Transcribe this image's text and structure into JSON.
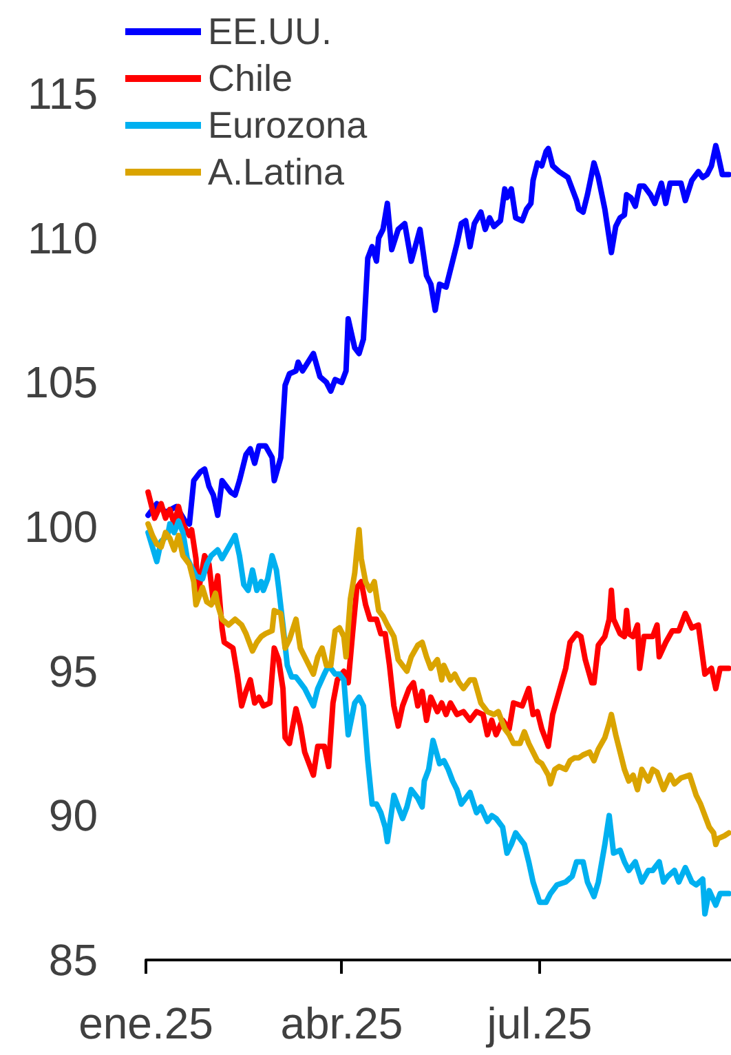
{
  "chart_data": {
    "type": "line",
    "legend": "top left",
    "xlim": [
      "2025-01-01",
      "2025-09-27"
    ],
    "xticks": [
      {
        "value": "2025-01-01",
        "label": "ene.25"
      },
      {
        "value": "2025-04-01",
        "label": "abr.25"
      },
      {
        "value": "2025-07-01",
        "label": "jul.25"
      }
    ],
    "ylim": [
      85,
      115
    ],
    "yticks": [
      85,
      90,
      95,
      100,
      105,
      110,
      115
    ],
    "series": [
      {
        "name": "EE.UU.",
        "color": "#0000ff",
        "x": [
          "2025-01-02",
          "2025-01-06",
          "2025-01-10",
          "2025-01-15",
          "2025-01-19",
          "2025-01-21",
          "2025-01-23",
          "2025-01-26",
          "2025-01-28",
          "2025-01-30",
          "2025-02-01",
          "2025-02-03",
          "2025-02-05",
          "2025-02-09",
          "2025-02-11",
          "2025-02-13",
          "2025-02-16",
          "2025-02-18",
          "2025-02-20",
          "2025-02-22",
          "2025-02-25",
          "2025-02-28",
          "2025-03-01",
          "2025-03-04",
          "2025-03-06",
          "2025-03-08",
          "2025-03-11",
          "2025-03-12",
          "2025-03-14",
          "2025-03-19",
          "2025-03-22",
          "2025-03-25",
          "2025-03-27",
          "2025-03-29",
          "2025-04-01",
          "2025-04-03",
          "2025-04-04",
          "2025-04-07",
          "2025-04-09",
          "2025-04-11",
          "2025-04-13",
          "2025-04-15",
          "2025-04-17",
          "2025-04-18",
          "2025-04-20",
          "2025-04-22",
          "2025-04-24",
          "2025-04-27",
          "2025-04-30",
          "2025-05-03",
          "2025-05-07",
          "2025-05-10",
          "2025-05-12",
          "2025-05-14",
          "2025-05-16",
          "2025-05-19",
          "2025-05-22",
          "2025-05-24",
          "2025-05-26",
          "2025-05-28",
          "2025-05-30",
          "2025-06-01",
          "2025-06-04",
          "2025-06-06",
          "2025-06-08",
          "2025-06-10",
          "2025-06-13",
          "2025-06-15",
          "2025-06-16",
          "2025-06-18",
          "2025-06-20",
          "2025-06-23",
          "2025-06-25",
          "2025-06-27",
          "2025-06-28",
          "2025-06-30",
          "2025-07-02",
          "2025-07-04",
          "2025-07-05",
          "2025-07-07",
          "2025-07-10",
          "2025-07-14",
          "2025-07-16",
          "2025-07-18",
          "2025-07-19",
          "2025-07-21",
          "2025-07-23",
          "2025-07-26",
          "2025-07-28",
          "2025-07-31",
          "2025-08-03",
          "2025-08-05",
          "2025-08-07",
          "2025-08-09",
          "2025-08-10",
          "2025-08-12",
          "2025-08-14",
          "2025-08-16",
          "2025-08-18",
          "2025-08-21",
          "2025-08-23",
          "2025-08-26",
          "2025-08-28",
          "2025-08-30",
          "2025-09-01",
          "2025-09-04",
          "2025-09-06",
          "2025-09-09",
          "2025-09-12",
          "2025-09-14",
          "2025-09-16",
          "2025-09-18",
          "2025-09-20",
          "2025-09-21",
          "2025-09-23",
          "2025-09-26"
        ],
        "values": [
          100.4,
          100.8,
          100.5,
          100.7,
          100.2,
          100.1,
          101.6,
          101.9,
          102.0,
          101.4,
          101.1,
          100.4,
          101.6,
          101.2,
          101.1,
          101.6,
          102.5,
          102.7,
          102.2,
          102.8,
          102.8,
          102.4,
          101.6,
          102.4,
          104.9,
          105.3,
          105.4,
          105.7,
          105.4,
          106.0,
          105.2,
          105.0,
          104.7,
          105.1,
          105.0,
          105.4,
          107.2,
          106.2,
          106.0,
          106.5,
          109.3,
          109.7,
          109.2,
          110.0,
          110.3,
          111.2,
          109.6,
          110.3,
          110.5,
          109.2,
          110.3,
          108.7,
          108.4,
          107.5,
          108.4,
          108.3,
          109.2,
          109.8,
          110.5,
          110.6,
          109.7,
          110.5,
          110.9,
          110.3,
          110.7,
          110.4,
          110.6,
          111.7,
          111.4,
          111.7,
          110.7,
          110.6,
          111.0,
          111.2,
          112.0,
          112.6,
          112.5,
          113.0,
          113.1,
          112.5,
          112.3,
          112.1,
          111.7,
          111.3,
          111.0,
          110.9,
          111.5,
          112.6,
          112.1,
          111.0,
          109.5,
          110.4,
          110.7,
          110.8,
          111.5,
          111.4,
          111.1,
          111.8,
          111.8,
          111.5,
          111.2,
          111.9,
          111.2,
          111.9,
          111.9,
          111.9,
          111.3,
          112.0,
          112.3,
          112.1,
          112.2,
          112.5,
          113.2,
          112.9,
          112.2,
          112.2
        ]
      },
      {
        "name": "Chile",
        "color": "#ff0000",
        "x": [
          "2025-01-02",
          "2025-01-05",
          "2025-01-08",
          "2025-01-10",
          "2025-01-12",
          "2025-01-14",
          "2025-01-16",
          "2025-01-18",
          "2025-01-21",
          "2025-01-22",
          "2025-01-24",
          "2025-01-25",
          "2025-01-28",
          "2025-01-30",
          "2025-02-01",
          "2025-02-03",
          "2025-02-05",
          "2025-02-06",
          "2025-02-10",
          "2025-02-12",
          "2025-02-14",
          "2025-02-16",
          "2025-02-18",
          "2025-02-20",
          "2025-02-22",
          "2025-02-24",
          "2025-02-27",
          "2025-03-01",
          "2025-03-03",
          "2025-03-05",
          "2025-03-06",
          "2025-03-08",
          "2025-03-11",
          "2025-03-13",
          "2025-03-15",
          "2025-03-19",
          "2025-03-21",
          "2025-03-24",
          "2025-03-26",
          "2025-03-28",
          "2025-03-30",
          "2025-04-02",
          "2025-04-04",
          "2025-04-06",
          "2025-04-08",
          "2025-04-10",
          "2025-04-12",
          "2025-04-14",
          "2025-04-17",
          "2025-04-19",
          "2025-04-21",
          "2025-04-23",
          "2025-04-25",
          "2025-04-27",
          "2025-04-29",
          "2025-05-02",
          "2025-05-04",
          "2025-05-06",
          "2025-05-08",
          "2025-05-10",
          "2025-05-12",
          "2025-05-15",
          "2025-05-17",
          "2025-05-19",
          "2025-05-21",
          "2025-05-24",
          "2025-05-27",
          "2025-05-30",
          "2025-06-02",
          "2025-06-05",
          "2025-06-07",
          "2025-06-09",
          "2025-06-11",
          "2025-06-14",
          "2025-06-17",
          "2025-06-19",
          "2025-06-23",
          "2025-06-26",
          "2025-06-28",
          "2025-06-30",
          "2025-07-02",
          "2025-07-05",
          "2025-07-07",
          "2025-07-10",
          "2025-07-13",
          "2025-07-15",
          "2025-07-18",
          "2025-07-20",
          "2025-07-22",
          "2025-07-25",
          "2025-07-26",
          "2025-07-28",
          "2025-07-31",
          "2025-08-02",
          "2025-08-03",
          "2025-08-04",
          "2025-08-07",
          "2025-08-09",
          "2025-08-10",
          "2025-08-11",
          "2025-08-13",
          "2025-08-15",
          "2025-08-16",
          "2025-08-18",
          "2025-08-22",
          "2025-08-24",
          "2025-08-25",
          "2025-08-28",
          "2025-08-31",
          "2025-09-03",
          "2025-09-06",
          "2025-09-09",
          "2025-09-12",
          "2025-09-15",
          "2025-09-18",
          "2025-09-20",
          "2025-09-22",
          "2025-09-26"
        ],
        "values": [
          101.2,
          100.3,
          100.8,
          100.3,
          100.6,
          100.1,
          100.7,
          100.1,
          99.7,
          99.9,
          98.9,
          97.7,
          99.0,
          98.7,
          97.4,
          98.3,
          96.5,
          96.0,
          95.8,
          94.9,
          93.8,
          94.3,
          94.7,
          93.9,
          94.1,
          93.8,
          93.9,
          95.8,
          95.4,
          94.4,
          92.7,
          92.5,
          93.7,
          93.1,
          92.2,
          91.4,
          92.4,
          92.4,
          91.7,
          93.9,
          94.7,
          95.0,
          94.6,
          96.3,
          97.9,
          98.1,
          97.3,
          96.8,
          96.8,
          96.3,
          96.3,
          95.2,
          93.8,
          93.1,
          93.8,
          94.4,
          94.6,
          93.8,
          94.3,
          93.3,
          94.1,
          93.6,
          93.9,
          93.5,
          93.9,
          93.5,
          93.6,
          93.3,
          93.6,
          93.5,
          92.8,
          93.3,
          92.8,
          93.3,
          93.0,
          93.9,
          93.8,
          94.4,
          93.5,
          93.6,
          93.0,
          92.4,
          93.5,
          94.3,
          95.1,
          96.0,
          96.3,
          96.2,
          95.4,
          94.6,
          94.6,
          95.9,
          96.2,
          96.8,
          97.8,
          96.8,
          96.3,
          96.2,
          97.1,
          96.3,
          96.2,
          96.6,
          95.1,
          96.2,
          96.2,
          96.6,
          95.5,
          96.0,
          96.4,
          96.4,
          97.0,
          96.5,
          96.6,
          94.9,
          95.1,
          94.4,
          95.1,
          95.1
        ]
      },
      {
        "name": "Eurozona",
        "color": "#00b0f0",
        "x": [
          "2025-01-02",
          "2025-01-04",
          "2025-01-06",
          "2025-01-08",
          "2025-01-11",
          "2025-01-12",
          "2025-01-14",
          "2025-01-16",
          "2025-01-18",
          "2025-01-20",
          "2025-01-22",
          "2025-01-24",
          "2025-01-27",
          "2025-01-29",
          "2025-01-31",
          "2025-02-03",
          "2025-02-05",
          "2025-02-08",
          "2025-02-11",
          "2025-02-13",
          "2025-02-15",
          "2025-02-17",
          "2025-02-19",
          "2025-02-21",
          "2025-02-23",
          "2025-02-24",
          "2025-02-26",
          "2025-02-28",
          "2025-03-02",
          "2025-03-03",
          "2025-03-05",
          "2025-03-07",
          "2025-03-09",
          "2025-03-11",
          "2025-03-13",
          "2025-03-15",
          "2025-03-19",
          "2025-03-21",
          "2025-03-24",
          "2025-03-26",
          "2025-03-29",
          "2025-03-31",
          "2025-04-02",
          "2025-04-04",
          "2025-04-07",
          "2025-04-09",
          "2025-04-11",
          "2025-04-13",
          "2025-04-15",
          "2025-04-17",
          "2025-04-19",
          "2025-04-21",
          "2025-04-22",
          "2025-04-25",
          "2025-04-27",
          "2025-04-29",
          "2025-05-01",
          "2025-05-03",
          "2025-05-06",
          "2025-05-08",
          "2025-05-09",
          "2025-05-11",
          "2025-05-13",
          "2025-05-16",
          "2025-05-18",
          "2025-05-20",
          "2025-05-22",
          "2025-05-24",
          "2025-05-26",
          "2025-05-28",
          "2025-05-30",
          "2025-06-02",
          "2025-06-04",
          "2025-06-07",
          "2025-06-09",
          "2025-06-11",
          "2025-06-14",
          "2025-06-16",
          "2025-06-18",
          "2025-06-20",
          "2025-06-24",
          "2025-06-26",
          "2025-06-28",
          "2025-07-01",
          "2025-07-04",
          "2025-07-06",
          "2025-07-09",
          "2025-07-13",
          "2025-07-16",
          "2025-07-18",
          "2025-07-21",
          "2025-07-23",
          "2025-07-26",
          "2025-07-28",
          "2025-07-31",
          "2025-08-02",
          "2025-08-04",
          "2025-08-07",
          "2025-08-09",
          "2025-08-11",
          "2025-08-14",
          "2025-08-17",
          "2025-08-20",
          "2025-08-22",
          "2025-08-25",
          "2025-08-27",
          "2025-08-29",
          "2025-09-01",
          "2025-09-03",
          "2025-09-06",
          "2025-09-09",
          "2025-09-11",
          "2025-09-14",
          "2025-09-15",
          "2025-09-17",
          "2025-09-20",
          "2025-09-22",
          "2025-09-26"
        ],
        "values": [
          99.8,
          99.3,
          98.8,
          99.5,
          99.7,
          100.1,
          99.8,
          100.2,
          99.8,
          98.9,
          98.6,
          98.3,
          98.2,
          98.7,
          99.0,
          99.2,
          98.9,
          99.3,
          99.7,
          99.0,
          98.0,
          97.8,
          98.5,
          97.8,
          98.1,
          97.8,
          98.2,
          99.0,
          98.5,
          97.9,
          96.6,
          95.2,
          94.8,
          94.8,
          94.6,
          94.4,
          93.8,
          94.4,
          94.9,
          95.2,
          94.9,
          94.9,
          94.7,
          92.8,
          93.9,
          94.1,
          93.8,
          91.9,
          90.4,
          90.4,
          90.1,
          89.6,
          89.1,
          90.7,
          90.3,
          89.9,
          90.3,
          90.9,
          90.6,
          90.3,
          91.2,
          91.6,
          92.6,
          91.8,
          91.9,
          91.6,
          91.2,
          90.9,
          90.4,
          90.6,
          90.8,
          90.1,
          90.3,
          89.8,
          90.0,
          89.9,
          89.6,
          88.7,
          89.0,
          89.4,
          89.0,
          88.4,
          87.7,
          87.0,
          87.0,
          87.3,
          87.6,
          87.7,
          87.9,
          88.4,
          88.4,
          87.7,
          87.2,
          87.7,
          89.0,
          90.0,
          88.7,
          88.8,
          88.4,
          88.1,
          88.4,
          87.7,
          88.1,
          88.1,
          88.4,
          87.7,
          87.9,
          88.1,
          87.7,
          88.2,
          87.7,
          87.6,
          87.8,
          86.6,
          87.4,
          86.9,
          87.3,
          87.3
        ]
      },
      {
        "name": "A.Latina",
        "color": "#daa400",
        "x": [
          "2025-01-02",
          "2025-01-04",
          "2025-01-06",
          "2025-01-08",
          "2025-01-10",
          "2025-01-12",
          "2025-01-14",
          "2025-01-16",
          "2025-01-18",
          "2025-01-21",
          "2025-01-23",
          "2025-01-24",
          "2025-01-27",
          "2025-01-29",
          "2025-01-31",
          "2025-02-02",
          "2025-02-03",
          "2025-02-05",
          "2025-02-08",
          "2025-02-11",
          "2025-02-14",
          "2025-02-16",
          "2025-02-19",
          "2025-02-21",
          "2025-02-23",
          "2025-02-25",
          "2025-02-28",
          "2025-03-01",
          "2025-03-04",
          "2025-03-06",
          "2025-03-08",
          "2025-03-11",
          "2025-03-13",
          "2025-03-15",
          "2025-03-19",
          "2025-03-21",
          "2025-03-23",
          "2025-03-25",
          "2025-03-27",
          "2025-03-29",
          "2025-03-31",
          "2025-04-02",
          "2025-04-03",
          "2025-04-05",
          "2025-04-07",
          "2025-04-08",
          "2025-04-09",
          "2025-04-10",
          "2025-04-12",
          "2025-04-14",
          "2025-04-16",
          "2025-04-18",
          "2025-04-20",
          "2025-04-22",
          "2025-04-25",
          "2025-04-27",
          "2025-04-29",
          "2025-05-01",
          "2025-05-03",
          "2025-05-06",
          "2025-05-08",
          "2025-05-10",
          "2025-05-12",
          "2025-05-15",
          "2025-05-17",
          "2025-05-18",
          "2025-05-21",
          "2025-05-23",
          "2025-05-25",
          "2025-05-27",
          "2025-05-30",
          "2025-06-01",
          "2025-06-04",
          "2025-06-07",
          "2025-06-10",
          "2025-06-12",
          "2025-06-15",
          "2025-06-17",
          "2025-06-19",
          "2025-06-22",
          "2025-06-24",
          "2025-06-26",
          "2025-06-28",
          "2025-06-30",
          "2025-07-02",
          "2025-07-05",
          "2025-07-06",
          "2025-07-08",
          "2025-07-10",
          "2025-07-13",
          "2025-07-15",
          "2025-07-17",
          "2025-07-19",
          "2025-07-21",
          "2025-07-24",
          "2025-07-26",
          "2025-07-28",
          "2025-07-31",
          "2025-08-02",
          "2025-08-03",
          "2025-08-05",
          "2025-08-07",
          "2025-08-09",
          "2025-08-11",
          "2025-08-13",
          "2025-08-15",
          "2025-08-17",
          "2025-08-20",
          "2025-08-22",
          "2025-08-24",
          "2025-08-27",
          "2025-08-30",
          "2025-09-01",
          "2025-09-04",
          "2025-09-08",
          "2025-09-11",
          "2025-09-13",
          "2025-09-16",
          "2025-09-17",
          "2025-09-19",
          "2025-09-20",
          "2025-09-21",
          "2025-09-24",
          "2025-09-26"
        ],
        "values": [
          100.1,
          99.7,
          99.4,
          99.3,
          99.8,
          99.6,
          99.2,
          99.7,
          99.0,
          98.7,
          98.1,
          97.3,
          97.9,
          97.4,
          97.3,
          97.7,
          97.3,
          96.8,
          96.6,
          96.8,
          96.6,
          96.3,
          95.7,
          96.0,
          96.2,
          96.3,
          96.4,
          97.1,
          97.0,
          95.8,
          96.1,
          96.8,
          95.8,
          95.5,
          94.9,
          95.5,
          95.8,
          95.2,
          95.2,
          96.4,
          96.5,
          96.2,
          95.5,
          97.5,
          98.4,
          99.2,
          99.9,
          98.9,
          98.1,
          97.8,
          98.1,
          97.1,
          96.9,
          96.6,
          96.2,
          95.4,
          95.2,
          95.0,
          95.5,
          95.9,
          96.0,
          95.5,
          95.1,
          95.4,
          94.7,
          95.2,
          94.7,
          94.9,
          94.6,
          94.4,
          94.7,
          94.7,
          93.9,
          93.6,
          93.5,
          93.6,
          93.0,
          92.8,
          92.5,
          92.5,
          92.9,
          92.5,
          92.2,
          91.9,
          91.8,
          91.4,
          91.1,
          91.6,
          91.7,
          91.6,
          91.9,
          92.0,
          92.0,
          92.1,
          92.2,
          91.9,
          92.3,
          92.7,
          93.2,
          93.5,
          92.8,
          92.2,
          91.6,
          91.2,
          91.4,
          90.9,
          91.6,
          91.2,
          91.6,
          91.5,
          90.9,
          91.4,
          91.1,
          91.3,
          91.4,
          90.7,
          90.4,
          89.8,
          89.6,
          89.4,
          89.0,
          89.2,
          89.3,
          89.4
        ]
      }
    ]
  }
}
